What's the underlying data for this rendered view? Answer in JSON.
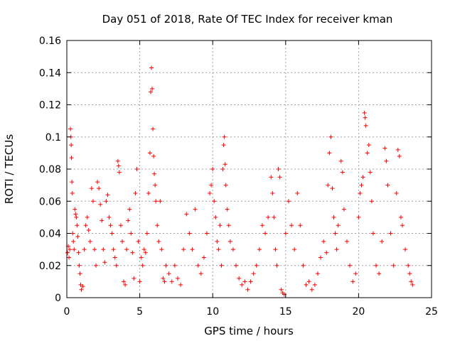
{
  "chart_data": {
    "type": "scatter",
    "title": "Day 051 of 2018, Rate Of TEC Index for receiver kman",
    "xlabel": "GPS time / hours",
    "ylabel": "ROTI / TECUs",
    "xlim": [
      0,
      25
    ],
    "ylim": [
      0,
      0.16
    ],
    "xticks": [
      0,
      5,
      10,
      15,
      20,
      25
    ],
    "xtick_labels": [
      "0",
      "5",
      "10",
      "15",
      "20",
      "25"
    ],
    "yticks": [
      0,
      0.02,
      0.04,
      0.06,
      0.08,
      0.1,
      0.12,
      0.14,
      0.16
    ],
    "ytick_labels": [
      "0",
      "0.02",
      "0.04",
      "0.06",
      "0.08",
      "0.1",
      "0.12",
      "0.14",
      "0.16"
    ],
    "grid": true,
    "marker": "+",
    "color": "#ff0000",
    "series": [
      {
        "name": "ROTI",
        "points": [
          [
            0.05,
            0.028
          ],
          [
            0.1,
            0.032
          ],
          [
            0.15,
            0.025
          ],
          [
            0.2,
            0.03
          ],
          [
            0.25,
            0.105
          ],
          [
            0.28,
            0.1
          ],
          [
            0.3,
            0.095
          ],
          [
            0.32,
            0.087
          ],
          [
            0.35,
            0.072
          ],
          [
            0.38,
            0.065
          ],
          [
            0.4,
            0.04
          ],
          [
            0.45,
            0.035
          ],
          [
            0.5,
            0.03
          ],
          [
            0.55,
            0.055
          ],
          [
            0.6,
            0.052
          ],
          [
            0.65,
            0.05
          ],
          [
            0.7,
            0.045
          ],
          [
            0.75,
            0.038
          ],
          [
            0.8,
            0.028
          ],
          [
            0.85,
            0.02
          ],
          [
            0.9,
            0.015
          ],
          [
            0.95,
            0.008
          ],
          [
            1.0,
            0.005
          ],
          [
            1.1,
            0.007
          ],
          [
            1.2,
            0.03
          ],
          [
            1.3,
            0.045
          ],
          [
            1.4,
            0.05
          ],
          [
            1.5,
            0.042
          ],
          [
            1.6,
            0.035
          ],
          [
            1.7,
            0.068
          ],
          [
            1.8,
            0.06
          ],
          [
            1.9,
            0.03
          ],
          [
            2.0,
            0.02
          ],
          [
            2.1,
            0.072
          ],
          [
            2.2,
            0.068
          ],
          [
            2.3,
            0.058
          ],
          [
            2.4,
            0.048
          ],
          [
            2.5,
            0.03
          ],
          [
            2.6,
            0.022
          ],
          [
            2.7,
            0.06
          ],
          [
            2.8,
            0.064
          ],
          [
            2.9,
            0.05
          ],
          [
            3.0,
            0.045
          ],
          [
            3.1,
            0.04
          ],
          [
            3.2,
            0.03
          ],
          [
            3.3,
            0.025
          ],
          [
            3.4,
            0.02
          ],
          [
            3.5,
            0.085
          ],
          [
            3.55,
            0.082
          ],
          [
            3.6,
            0.078
          ],
          [
            3.7,
            0.045
          ],
          [
            3.8,
            0.035
          ],
          [
            3.9,
            0.01
          ],
          [
            4.0,
            0.008
          ],
          [
            4.1,
            0.03
          ],
          [
            4.2,
            0.048
          ],
          [
            4.3,
            0.055
          ],
          [
            4.4,
            0.04
          ],
          [
            4.5,
            0.028
          ],
          [
            4.6,
            0.012
          ],
          [
            4.7,
            0.065
          ],
          [
            4.8,
            0.08
          ],
          [
            4.9,
            0.035
          ],
          [
            5.0,
            0.01
          ],
          [
            5.1,
            0.025
          ],
          [
            5.2,
            0.02
          ],
          [
            5.3,
            0.03
          ],
          [
            5.4,
            0.028
          ],
          [
            5.5,
            0.04
          ],
          [
            5.6,
            0.065
          ],
          [
            5.7,
            0.09
          ],
          [
            5.75,
            0.128
          ],
          [
            5.8,
            0.143
          ],
          [
            5.85,
            0.13
          ],
          [
            5.9,
            0.105
          ],
          [
            5.95,
            0.088
          ],
          [
            6.0,
            0.077
          ],
          [
            6.05,
            0.07
          ],
          [
            6.1,
            0.06
          ],
          [
            6.2,
            0.045
          ],
          [
            6.3,
            0.035
          ],
          [
            6.4,
            0.06
          ],
          [
            6.5,
            0.03
          ],
          [
            6.6,
            0.012
          ],
          [
            6.7,
            0.01
          ],
          [
            6.8,
            0.02
          ],
          [
            7.0,
            0.015
          ],
          [
            7.2,
            0.01
          ],
          [
            7.4,
            0.02
          ],
          [
            7.6,
            0.012
          ],
          [
            7.8,
            0.008
          ],
          [
            8.0,
            0.03
          ],
          [
            8.2,
            0.052
          ],
          [
            8.4,
            0.04
          ],
          [
            8.6,
            0.03
          ],
          [
            8.8,
            0.055
          ],
          [
            9.0,
            0.02
          ],
          [
            9.2,
            0.015
          ],
          [
            9.4,
            0.025
          ],
          [
            9.6,
            0.04
          ],
          [
            9.8,
            0.065
          ],
          [
            9.9,
            0.07
          ],
          [
            10.0,
            0.08
          ],
          [
            10.1,
            0.06
          ],
          [
            10.2,
            0.05
          ],
          [
            10.3,
            0.035
          ],
          [
            10.4,
            0.03
          ],
          [
            10.5,
            0.045
          ],
          [
            10.6,
            0.02
          ],
          [
            10.7,
            0.08
          ],
          [
            10.75,
            0.095
          ],
          [
            10.8,
            0.1
          ],
          [
            10.85,
            0.083
          ],
          [
            10.9,
            0.07
          ],
          [
            11.0,
            0.055
          ],
          [
            11.1,
            0.045
          ],
          [
            11.2,
            0.035
          ],
          [
            11.4,
            0.03
          ],
          [
            11.6,
            0.02
          ],
          [
            11.8,
            0.012
          ],
          [
            12.0,
            0.008
          ],
          [
            12.2,
            0.01
          ],
          [
            12.4,
            0.005
          ],
          [
            12.6,
            0.01
          ],
          [
            12.8,
            0.015
          ],
          [
            13.0,
            0.02
          ],
          [
            13.2,
            0.03
          ],
          [
            13.4,
            0.045
          ],
          [
            13.6,
            0.04
          ],
          [
            13.8,
            0.05
          ],
          [
            14.0,
            0.075
          ],
          [
            14.1,
            0.065
          ],
          [
            14.2,
            0.05
          ],
          [
            14.3,
            0.03
          ],
          [
            14.4,
            0.02
          ],
          [
            14.5,
            0.08
          ],
          [
            14.6,
            0.075
          ],
          [
            14.7,
            0.005
          ],
          [
            14.8,
            0.003
          ],
          [
            14.9,
            0.002
          ],
          [
            15.0,
            0.04
          ],
          [
            15.2,
            0.06
          ],
          [
            15.4,
            0.045
          ],
          [
            15.6,
            0.03
          ],
          [
            15.8,
            0.065
          ],
          [
            16.0,
            0.045
          ],
          [
            16.2,
            0.02
          ],
          [
            16.4,
            0.008
          ],
          [
            16.6,
            0.01
          ],
          [
            16.8,
            0.005
          ],
          [
            17.0,
            0.008
          ],
          [
            17.2,
            0.015
          ],
          [
            17.4,
            0.025
          ],
          [
            17.6,
            0.035
          ],
          [
            17.8,
            0.028
          ],
          [
            17.9,
            0.07
          ],
          [
            18.0,
            0.09
          ],
          [
            18.1,
            0.1
          ],
          [
            18.2,
            0.068
          ],
          [
            18.3,
            0.05
          ],
          [
            18.4,
            0.04
          ],
          [
            18.5,
            0.03
          ],
          [
            18.6,
            0.045
          ],
          [
            18.8,
            0.085
          ],
          [
            18.9,
            0.078
          ],
          [
            19.0,
            0.055
          ],
          [
            19.2,
            0.035
          ],
          [
            19.4,
            0.02
          ],
          [
            19.6,
            0.01
          ],
          [
            19.8,
            0.015
          ],
          [
            20.0,
            0.05
          ],
          [
            20.1,
            0.065
          ],
          [
            20.2,
            0.07
          ],
          [
            20.3,
            0.075
          ],
          [
            20.4,
            0.115
          ],
          [
            20.45,
            0.112
          ],
          [
            20.5,
            0.107
          ],
          [
            20.6,
            0.09
          ],
          [
            20.7,
            0.095
          ],
          [
            20.8,
            0.078
          ],
          [
            20.9,
            0.06
          ],
          [
            21.0,
            0.04
          ],
          [
            21.2,
            0.02
          ],
          [
            21.4,
            0.015
          ],
          [
            21.6,
            0.035
          ],
          [
            21.8,
            0.093
          ],
          [
            21.9,
            0.085
          ],
          [
            22.0,
            0.07
          ],
          [
            22.2,
            0.04
          ],
          [
            22.4,
            0.02
          ],
          [
            22.6,
            0.065
          ],
          [
            22.7,
            0.092
          ],
          [
            22.8,
            0.088
          ],
          [
            22.9,
            0.05
          ],
          [
            23.0,
            0.045
          ],
          [
            23.2,
            0.03
          ],
          [
            23.4,
            0.02
          ],
          [
            23.5,
            0.015
          ],
          [
            23.6,
            0.01
          ],
          [
            23.7,
            0.008
          ]
        ]
      }
    ]
  }
}
